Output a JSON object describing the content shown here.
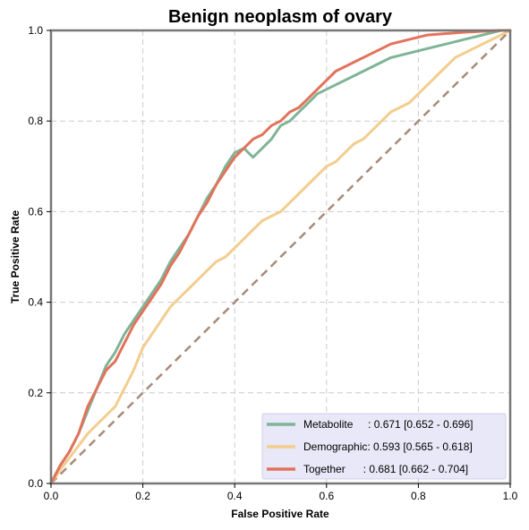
{
  "chart_data": {
    "type": "line",
    "title": "Benign neoplasm of ovary",
    "xlabel": "False Positive Rate",
    "ylabel": "True Positive Rate",
    "xlim": [
      0,
      1
    ],
    "ylim": [
      0,
      1
    ],
    "x_ticks": [
      "0.0",
      "0.2",
      "0.4",
      "0.6",
      "0.8",
      "1.0"
    ],
    "y_ticks": [
      "0.0",
      "0.2",
      "0.4",
      "0.6",
      "0.8",
      "1.0"
    ],
    "grid": true,
    "legend_position": "bottom-right",
    "chance_line": {
      "x": [
        0,
        1
      ],
      "y": [
        0,
        1
      ],
      "color": "#a88a78",
      "style": "dashed"
    },
    "series": [
      {
        "name": "Metabolite",
        "legend_label": "Metabolite     : 0.671 [0.652 - 0.696]",
        "color": "#7fb497",
        "x": [
          0,
          0.01,
          0.02,
          0.04,
          0.06,
          0.08,
          0.1,
          0.12,
          0.14,
          0.16,
          0.18,
          0.2,
          0.22,
          0.24,
          0.26,
          0.28,
          0.3,
          0.32,
          0.34,
          0.36,
          0.38,
          0.4,
          0.42,
          0.44,
          0.46,
          0.48,
          0.5,
          0.52,
          0.54,
          0.56,
          0.58,
          0.6,
          0.62,
          0.64,
          0.66,
          0.7,
          0.74,
          0.78,
          0.82,
          0.86,
          0.9,
          0.94,
          0.98,
          1.0
        ],
        "y": [
          0,
          0.02,
          0.04,
          0.07,
          0.11,
          0.16,
          0.21,
          0.26,
          0.29,
          0.33,
          0.36,
          0.39,
          0.42,
          0.45,
          0.49,
          0.52,
          0.55,
          0.59,
          0.63,
          0.66,
          0.7,
          0.73,
          0.74,
          0.72,
          0.74,
          0.76,
          0.79,
          0.8,
          0.82,
          0.84,
          0.86,
          0.87,
          0.88,
          0.89,
          0.9,
          0.92,
          0.94,
          0.95,
          0.96,
          0.97,
          0.98,
          0.99,
          1.0,
          1.0
        ]
      },
      {
        "name": "Demographic",
        "legend_label": "Demographic: 0.593 [0.565 - 0.618]",
        "color": "#f3cd8e",
        "x": [
          0,
          0.02,
          0.05,
          0.08,
          0.11,
          0.14,
          0.16,
          0.18,
          0.2,
          0.22,
          0.24,
          0.26,
          0.28,
          0.3,
          0.32,
          0.34,
          0.36,
          0.38,
          0.4,
          0.42,
          0.44,
          0.46,
          0.48,
          0.5,
          0.52,
          0.54,
          0.56,
          0.58,
          0.6,
          0.62,
          0.64,
          0.66,
          0.68,
          0.7,
          0.72,
          0.74,
          0.76,
          0.78,
          0.8,
          0.82,
          0.84,
          0.86,
          0.88,
          0.9,
          0.92,
          0.94,
          0.96,
          0.98,
          1.0
        ],
        "y": [
          0,
          0.03,
          0.07,
          0.11,
          0.14,
          0.17,
          0.21,
          0.25,
          0.3,
          0.33,
          0.36,
          0.39,
          0.41,
          0.43,
          0.45,
          0.47,
          0.49,
          0.5,
          0.52,
          0.54,
          0.56,
          0.58,
          0.59,
          0.6,
          0.62,
          0.64,
          0.66,
          0.68,
          0.7,
          0.71,
          0.73,
          0.75,
          0.76,
          0.78,
          0.8,
          0.82,
          0.83,
          0.84,
          0.86,
          0.88,
          0.9,
          0.92,
          0.94,
          0.95,
          0.96,
          0.97,
          0.98,
          0.99,
          1.0
        ]
      },
      {
        "name": "Together",
        "legend_label": "Together      : 0.681 [0.662 - 0.704]",
        "color": "#e2735b",
        "x": [
          0,
          0.01,
          0.02,
          0.04,
          0.06,
          0.08,
          0.1,
          0.12,
          0.14,
          0.16,
          0.18,
          0.2,
          0.22,
          0.24,
          0.26,
          0.28,
          0.3,
          0.32,
          0.34,
          0.36,
          0.38,
          0.4,
          0.42,
          0.44,
          0.46,
          0.48,
          0.5,
          0.52,
          0.54,
          0.56,
          0.58,
          0.6,
          0.62,
          0.64,
          0.66,
          0.7,
          0.74,
          0.78,
          0.8,
          0.82,
          0.86,
          0.9,
          0.94,
          0.98,
          1.0
        ],
        "y": [
          0,
          0.02,
          0.04,
          0.07,
          0.11,
          0.17,
          0.21,
          0.25,
          0.27,
          0.31,
          0.35,
          0.38,
          0.41,
          0.44,
          0.48,
          0.51,
          0.55,
          0.59,
          0.62,
          0.66,
          0.69,
          0.72,
          0.74,
          0.76,
          0.77,
          0.79,
          0.8,
          0.82,
          0.83,
          0.85,
          0.87,
          0.89,
          0.91,
          0.92,
          0.93,
          0.95,
          0.97,
          0.98,
          0.985,
          0.99,
          0.993,
          0.996,
          0.998,
          1.0,
          1.0
        ]
      }
    ]
  }
}
